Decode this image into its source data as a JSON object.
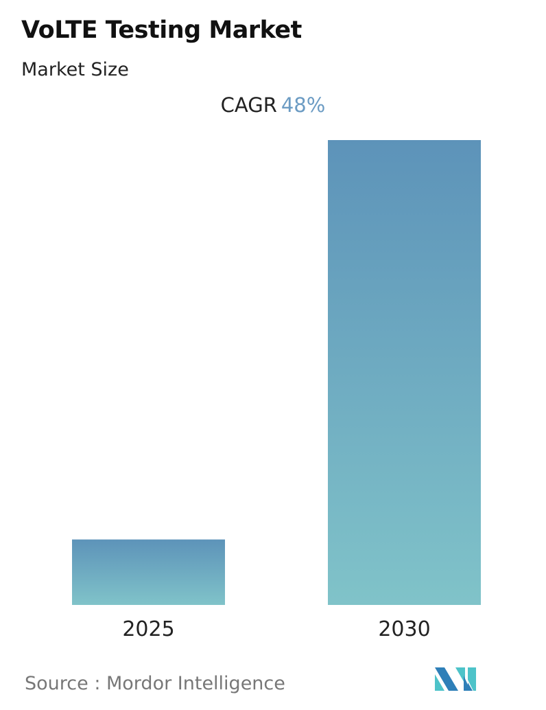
{
  "header": {
    "title": "VoLTE Testing Market",
    "subtitle": "Market Size"
  },
  "cagr": {
    "label": "CAGR",
    "value": "48%"
  },
  "chart_data": {
    "type": "bar",
    "categories": [
      "2025",
      "2030"
    ],
    "values": [
      1,
      7.1
    ],
    "title": "VoLTE Testing Market",
    "subtitle": "Market Size",
    "xlabel": "",
    "ylabel": "",
    "grid": false,
    "colors": {
      "bar_top": "#5d93b9",
      "bar_bottom": "#80c3c9",
      "cagr_value": "#6b9bc3"
    }
  },
  "footer": {
    "source": "Source :  Mordor Intelligence"
  },
  "logo": {
    "name": "Mordor Intelligence logo",
    "colors": [
      "#2e7fb8",
      "#4dc3c9"
    ]
  }
}
